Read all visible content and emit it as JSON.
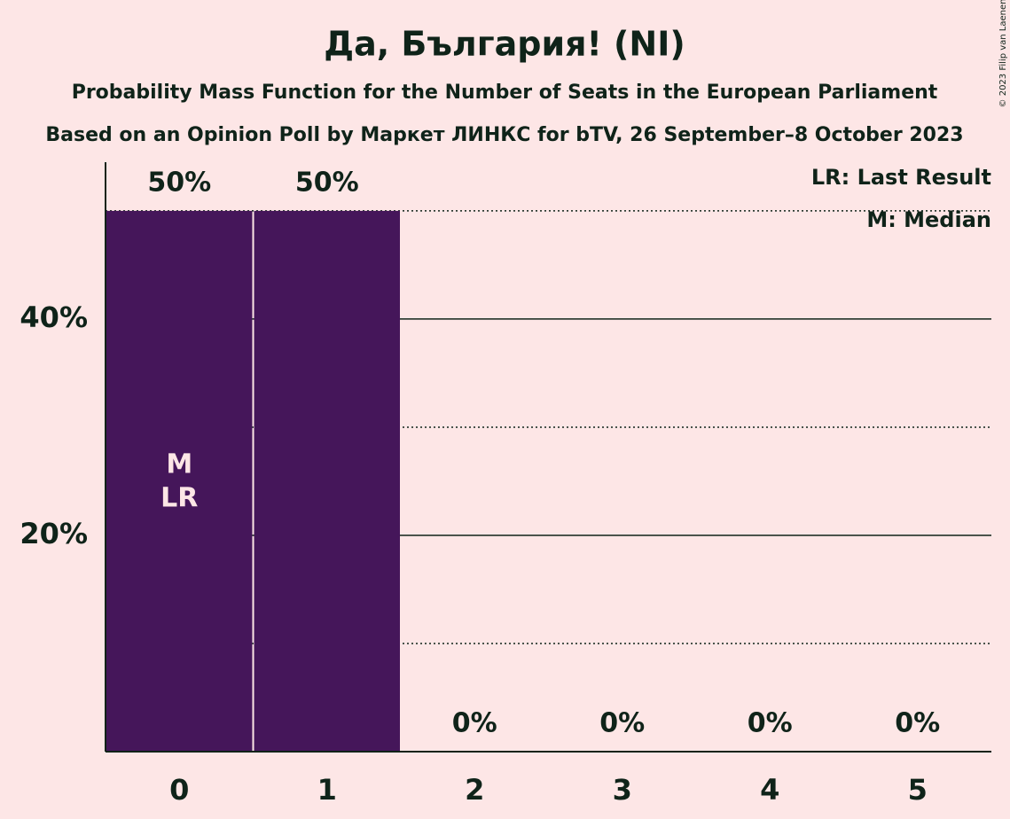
{
  "chart_data": {
    "type": "bar",
    "title": "Да, България! (NI)",
    "subtitle": "Probability Mass Function for the Number of Seats in the European Parliament",
    "subtitle2": "Based on an Opinion Poll by Маркет ЛИНКС for bTV, 26 September–8 October 2023",
    "copyright": "© 2023 Filip van Laenen",
    "categories": [
      "0",
      "1",
      "2",
      "3",
      "4",
      "5"
    ],
    "values": [
      50,
      50,
      0,
      0,
      0,
      0
    ],
    "value_labels": [
      "50%",
      "50%",
      "0%",
      "0%",
      "0%",
      "0%"
    ],
    "color": "#45165a",
    "ylim": [
      0,
      54.5
    ],
    "yticks": [
      {
        "value": 20,
        "label": "20%"
      },
      {
        "value": 40,
        "label": "40%"
      }
    ],
    "minor_yticks": [
      10,
      30,
      50
    ],
    "grid": true,
    "median": {
      "category": 0,
      "label": "M"
    },
    "last_result": {
      "category": 0,
      "label": "LR"
    },
    "legend": [
      "LR: Last Result",
      "M: Median"
    ],
    "legend_position": "top-right"
  }
}
